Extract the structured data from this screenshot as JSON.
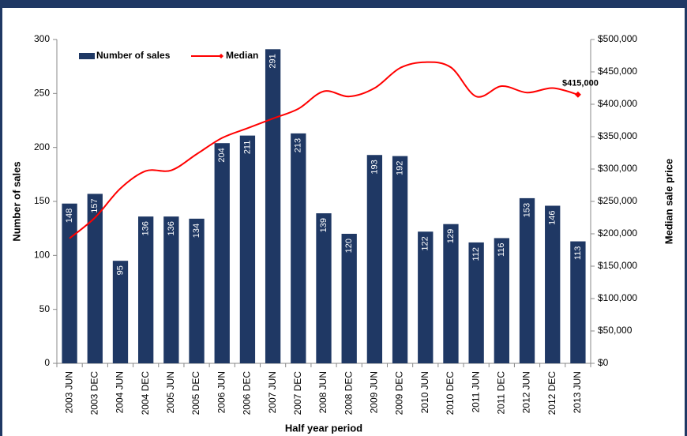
{
  "chart_data": {
    "type": "bar_line",
    "xlabel": "Half year period",
    "ylabel": "Number of sales",
    "y2label": "Median sale price",
    "categories": [
      "2003 JUN",
      "2003 DEC",
      "2004 JUN",
      "2004 DEC",
      "2005 JUN",
      "2005 DEC",
      "2006 JUN",
      "2006 DEC",
      "2007 JUN",
      "2007 DEC",
      "2008 JUN",
      "2008 DEC",
      "2009 JUN",
      "2009 DEC",
      "2010 JUN",
      "2010 DEC",
      "2011 JUN",
      "2011 DEC",
      "2012 JUN",
      "2012 DEC",
      "2013 JUN"
    ],
    "series": [
      {
        "name": "Number of sales",
        "color": "#1f3864",
        "type": "bar",
        "values": [
          148,
          157,
          95,
          136,
          136,
          134,
          204,
          211,
          291,
          213,
          139,
          120,
          193,
          192,
          122,
          129,
          112,
          116,
          153,
          146,
          113
        ]
      },
      {
        "name": "Median",
        "color": "#ff0000",
        "type": "line",
        "axis": "y2",
        "values": [
          193000,
          225000,
          270000,
          297000,
          298000,
          323000,
          348000,
          363000,
          378000,
          393000,
          420000,
          412000,
          425000,
          456000,
          465000,
          457000,
          412000,
          428000,
          418000,
          425000,
          415000
        ],
        "value_labels": [
          null,
          null,
          null,
          null,
          null,
          null,
          null,
          null,
          null,
          null,
          null,
          null,
          null,
          null,
          null,
          null,
          null,
          null,
          null,
          null,
          "$415,000"
        ]
      }
    ],
    "ylim": [
      0,
      300
    ],
    "yticks": [
      0,
      50,
      100,
      150,
      200,
      250,
      300
    ],
    "y2lim": [
      0,
      500000
    ],
    "y2ticks": [
      {
        "value": 0,
        "label": "$0"
      },
      {
        "value": 50000,
        "label": "$50,000"
      },
      {
        "value": 100000,
        "label": "$100,000"
      },
      {
        "value": 150000,
        "label": "$150,000"
      },
      {
        "value": 200000,
        "label": "$200,000"
      },
      {
        "value": 250000,
        "label": "$250,000"
      },
      {
        "value": 300000,
        "label": "$300,000"
      },
      {
        "value": 350000,
        "label": "$350,000"
      },
      {
        "value": 400000,
        "label": "$400,000"
      },
      {
        "value": 450000,
        "label": "$450,000"
      },
      {
        "value": 500000,
        "label": "$500,000"
      }
    ],
    "legend": "upper left"
  }
}
